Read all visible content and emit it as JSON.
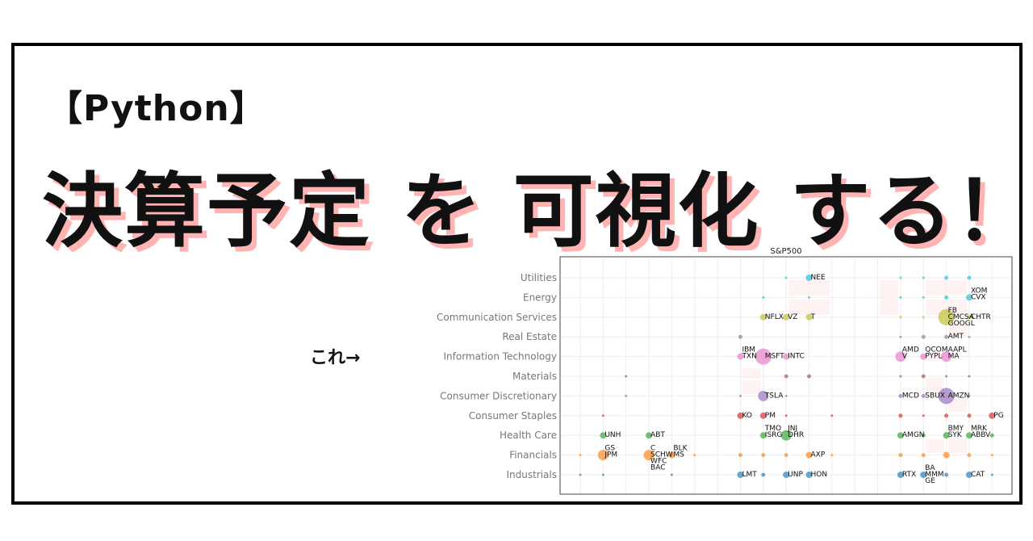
{
  "thumbnail": {
    "tag": "【Python】",
    "headline": "決算予定 を 可視化 する！",
    "pointer": "これ→"
  },
  "chart_data": {
    "type": "scatter",
    "title": "S&P500",
    "xlabel": "",
    "ylabel": "",
    "x_ticks_shown": false,
    "x_columns": 19,
    "grid": true,
    "categories": [
      "Utilities",
      "Energy",
      "Communication Services",
      "Real Estate",
      "Information Technology",
      "Materials",
      "Consumer Discretionary",
      "Consumer Staples",
      "Health Care",
      "Financials",
      "Industrials"
    ],
    "colors": {
      "Utilities": "#17becf",
      "Energy": "#17becf",
      "Communication Services": "#bcbd22",
      "Real Estate": "#7f7f7f",
      "Information Technology": "#e377c2",
      "Materials": "#8c564b",
      "Consumer Discretionary": "#9467bd",
      "Consumer Staples": "#d62728",
      "Health Care": "#2ca02c",
      "Financials": "#ff7f0e",
      "Industrials": "#1f77b4"
    },
    "size_levels": "1=tiny, 2=small, 3=medium, 4=large, 5=very large",
    "points": [
      {
        "sector": "Utilities",
        "x": 9,
        "size": 1
      },
      {
        "sector": "Utilities",
        "x": 10,
        "size": 3,
        "labels": [
          "NEE"
        ]
      },
      {
        "sector": "Utilities",
        "x": 14,
        "size": 1
      },
      {
        "sector": "Utilities",
        "x": 15,
        "size": 1
      },
      {
        "sector": "Utilities",
        "x": 16,
        "size": 2
      },
      {
        "sector": "Utilities",
        "x": 17,
        "size": 2
      },
      {
        "sector": "Energy",
        "x": 8,
        "size": 1
      },
      {
        "sector": "Energy",
        "x": 10,
        "size": 1
      },
      {
        "sector": "Energy",
        "x": 14,
        "size": 1
      },
      {
        "sector": "Energy",
        "x": 15,
        "size": 1
      },
      {
        "sector": "Energy",
        "x": 16,
        "size": 2
      },
      {
        "sector": "Energy",
        "x": 17,
        "size": 3,
        "labels": [
          "XOM",
          "CVX"
        ]
      },
      {
        "sector": "Communication Services",
        "x": 8,
        "size": 3,
        "labels": [
          "NFLX"
        ]
      },
      {
        "sector": "Communication Services",
        "x": 9,
        "size": 3,
        "labels": [
          "VZ"
        ]
      },
      {
        "sector": "Communication Services",
        "x": 10,
        "size": 3,
        "labels": [
          "T"
        ]
      },
      {
        "sector": "Communication Services",
        "x": 14,
        "size": 1
      },
      {
        "sector": "Communication Services",
        "x": 15,
        "size": 1
      },
      {
        "sector": "Communication Services",
        "x": 16,
        "size": 5,
        "labels": [
          "FB",
          "CMCSA",
          "GOOGL"
        ]
      },
      {
        "sector": "Communication Services",
        "x": 17,
        "size": 2,
        "labels": [
          "CHTR"
        ]
      },
      {
        "sector": "Real Estate",
        "x": 7,
        "size": 2
      },
      {
        "sector": "Real Estate",
        "x": 14,
        "size": 1
      },
      {
        "sector": "Real Estate",
        "x": 15,
        "size": 2
      },
      {
        "sector": "Real Estate",
        "x": 16,
        "size": 2,
        "labels": [
          "AMT"
        ]
      },
      {
        "sector": "Real Estate",
        "x": 17,
        "size": 1
      },
      {
        "sector": "Information Technology",
        "x": 7,
        "size": 3,
        "labels": [
          "IBM",
          "TXN"
        ]
      },
      {
        "sector": "Information Technology",
        "x": 8,
        "size": 5,
        "labels": [
          "MSFT"
        ]
      },
      {
        "sector": "Information Technology",
        "x": 9,
        "size": 3,
        "labels": [
          "INTC"
        ]
      },
      {
        "sector": "Information Technology",
        "x": 14,
        "size": 4,
        "labels": [
          "AMD",
          "V"
        ]
      },
      {
        "sector": "Information Technology",
        "x": 15,
        "size": 3,
        "labels": [
          "QCOM",
          "PYPL"
        ]
      },
      {
        "sector": "Information Technology",
        "x": 16,
        "size": 4,
        "labels": [
          "AAPL",
          "MA"
        ]
      },
      {
        "sector": "Materials",
        "x": 2,
        "size": 1
      },
      {
        "sector": "Materials",
        "x": 9,
        "size": 2
      },
      {
        "sector": "Materials",
        "x": 10,
        "size": 2
      },
      {
        "sector": "Materials",
        "x": 14,
        "size": 1
      },
      {
        "sector": "Materials",
        "x": 15,
        "size": 2
      },
      {
        "sector": "Materials",
        "x": 16,
        "size": 1
      },
      {
        "sector": "Materials",
        "x": 17,
        "size": 1
      },
      {
        "sector": "Consumer Discretionary",
        "x": 2,
        "size": 1
      },
      {
        "sector": "Consumer Discretionary",
        "x": 7,
        "size": 1
      },
      {
        "sector": "Consumer Discretionary",
        "x": 8,
        "size": 4,
        "labels": [
          "TSLA"
        ]
      },
      {
        "sector": "Consumer Discretionary",
        "x": 9,
        "size": 1
      },
      {
        "sector": "Consumer Discretionary",
        "x": 14,
        "size": 2,
        "labels": [
          "MCD"
        ]
      },
      {
        "sector": "Consumer Discretionary",
        "x": 15,
        "size": 2,
        "labels": [
          "SBUX"
        ]
      },
      {
        "sector": "Consumer Discretionary",
        "x": 16,
        "size": 5,
        "labels": [
          "AMZN"
        ]
      },
      {
        "sector": "Consumer Discretionary",
        "x": 17,
        "size": 1
      },
      {
        "sector": "Consumer Staples",
        "x": 1,
        "size": 1
      },
      {
        "sector": "Consumer Staples",
        "x": 7,
        "size": 3,
        "labels": [
          "KO"
        ]
      },
      {
        "sector": "Consumer Staples",
        "x": 8,
        "size": 3,
        "labels": [
          "PM"
        ]
      },
      {
        "sector": "Consumer Staples",
        "x": 9,
        "size": 1
      },
      {
        "sector": "Consumer Staples",
        "x": 11,
        "size": 1
      },
      {
        "sector": "Consumer Staples",
        "x": 14,
        "size": 2
      },
      {
        "sector": "Consumer Staples",
        "x": 15,
        "size": 1
      },
      {
        "sector": "Consumer Staples",
        "x": 16,
        "size": 2
      },
      {
        "sector": "Consumer Staples",
        "x": 17,
        "size": 2
      },
      {
        "sector": "Consumer Staples",
        "x": 18,
        "size": 3,
        "labels": [
          "PG"
        ]
      },
      {
        "sector": "Health Care",
        "x": 1,
        "size": 3,
        "labels": [
          "UNH"
        ]
      },
      {
        "sector": "Health Care",
        "x": 3,
        "size": 3,
        "labels": [
          "ABT"
        ]
      },
      {
        "sector": "Health Care",
        "x": 8,
        "size": 3,
        "labels": [
          "TMO",
          "ISRG"
        ]
      },
      {
        "sector": "Health Care",
        "x": 9,
        "size": 4,
        "labels": [
          "JNJ",
          "DHR"
        ]
      },
      {
        "sector": "Health Care",
        "x": 14,
        "size": 3,
        "labels": [
          "AMGN"
        ]
      },
      {
        "sector": "Health Care",
        "x": 15,
        "size": 2
      },
      {
        "sector": "Health Care",
        "x": 16,
        "size": 3,
        "labels": [
          "BMY",
          "SYK"
        ]
      },
      {
        "sector": "Health Care",
        "x": 17,
        "size": 3,
        "labels": [
          "MRK",
          "ABBV"
        ]
      },
      {
        "sector": "Health Care",
        "x": 18,
        "size": 2
      },
      {
        "sector": "Financials",
        "x": 0,
        "size": 1
      },
      {
        "sector": "Financials",
        "x": 1,
        "size": 4,
        "labels": [
          "GS",
          "JPM"
        ]
      },
      {
        "sector": "Financials",
        "x": 3,
        "size": 4,
        "labels": [
          "C",
          "SCHW",
          "WFC",
          "BAC"
        ]
      },
      {
        "sector": "Financials",
        "x": 4,
        "size": 3,
        "labels": [
          "BLK",
          "MS"
        ]
      },
      {
        "sector": "Financials",
        "x": 5,
        "size": 1
      },
      {
        "sector": "Financials",
        "x": 7,
        "size": 2
      },
      {
        "sector": "Financials",
        "x": 8,
        "size": 2
      },
      {
        "sector": "Financials",
        "x": 9,
        "size": 2
      },
      {
        "sector": "Financials",
        "x": 10,
        "size": 3,
        "labels": [
          "AXP"
        ]
      },
      {
        "sector": "Financials",
        "x": 11,
        "size": 1
      },
      {
        "sector": "Financials",
        "x": 14,
        "size": 2
      },
      {
        "sector": "Financials",
        "x": 15,
        "size": 2
      },
      {
        "sector": "Financials",
        "x": 16,
        "size": 3
      },
      {
        "sector": "Financials",
        "x": 17,
        "size": 2
      },
      {
        "sector": "Financials",
        "x": 18,
        "size": 1
      },
      {
        "sector": "Industrials",
        "x": 0,
        "size": 1
      },
      {
        "sector": "Industrials",
        "x": 1,
        "size": 1
      },
      {
        "sector": "Industrials",
        "x": 4,
        "size": 1
      },
      {
        "sector": "Industrials",
        "x": 7,
        "size": 3,
        "labels": [
          "LMT"
        ]
      },
      {
        "sector": "Industrials",
        "x": 8,
        "size": 2
      },
      {
        "sector": "Industrials",
        "x": 9,
        "size": 3,
        "labels": [
          "UNP"
        ]
      },
      {
        "sector": "Industrials",
        "x": 10,
        "size": 3,
        "labels": [
          "HON"
        ]
      },
      {
        "sector": "Industrials",
        "x": 14,
        "size": 3,
        "labels": [
          "RTX"
        ]
      },
      {
        "sector": "Industrials",
        "x": 15,
        "size": 3,
        "labels": [
          "BA",
          "MMM",
          "GE"
        ]
      },
      {
        "sector": "Industrials",
        "x": 16,
        "size": 2
      },
      {
        "sector": "Industrials",
        "x": 17,
        "size": 3,
        "labels": [
          "CAT"
        ]
      },
      {
        "sector": "Industrials",
        "x": 18,
        "size": 1
      }
    ]
  }
}
